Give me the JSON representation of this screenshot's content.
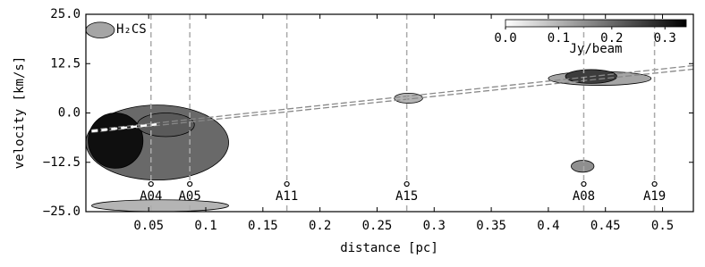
{
  "chart_data": {
    "type": "heatmap",
    "label": "H₂CS",
    "x_label": "distance [pc]",
    "y_label": "velocity [km/s]",
    "xlim": [
      -0.005,
      0.527
    ],
    "ylim": [
      -25,
      25
    ],
    "xticks": [
      0.05,
      0.1,
      0.15,
      0.2,
      0.25,
      0.3,
      0.35,
      0.4,
      0.45,
      0.5
    ],
    "yticks": [
      {
        "value": 25,
        "label": "25.0"
      },
      {
        "value": 12.5,
        "label": "12.5"
      },
      {
        "value": 0,
        "label": "0.0"
      },
      {
        "value": -12.5,
        "label": "−12.5"
      },
      {
        "value": -25,
        "label": "−25.0"
      }
    ],
    "colorbar": {
      "label": "Jy/beam",
      "lim": [
        0,
        0.34
      ],
      "ticks": [
        {
          "value": 0,
          "label": "0.0"
        },
        0.1,
        0.2,
        0.3
      ]
    },
    "emission": [
      {
        "x": [
          -0.005,
          0.12
        ],
        "v": [
          -17,
          2
        ],
        "peak": 0.2
      },
      {
        "x": [
          -0.003,
          0.045
        ],
        "v": [
          -14,
          0
        ],
        "peak": 0.32
      },
      {
        "x": [
          0.04,
          0.09
        ],
        "v": [
          -6,
          0
        ],
        "peak": 0.22
      },
      {
        "x": [
          0.265,
          0.29
        ],
        "v": [
          2.5,
          5
        ],
        "peak": 0.1
      },
      {
        "x": [
          0.4,
          0.49
        ],
        "v": [
          7,
          10.5
        ],
        "peak": 0.12
      },
      {
        "x": [
          0.415,
          0.46
        ],
        "v": [
          7.5,
          11
        ],
        "peak": 0.26
      },
      {
        "x": [
          0.42,
          0.44
        ],
        "v": [
          -15,
          -12
        ],
        "peak": 0.15
      },
      {
        "x": [
          0,
          0.12
        ],
        "v": [
          -25,
          -22
        ],
        "peak": 0.1
      },
      {
        "x": [
          -0.005,
          0.02
        ],
        "v": [
          19,
          23
        ],
        "peak": 0.12
      }
    ],
    "fit_lines": [
      {
        "x": [
          0,
          0.527
        ],
        "values": [
          -4.3,
          12.0
        ],
        "color": "#888888"
      },
      {
        "x": [
          0,
          0.527
        ],
        "values": [
          -4.9,
          11.1
        ],
        "color": "#888888"
      }
    ],
    "fit_segment": {
      "x": [
        0,
        0.06
      ],
      "values": [
        -4.6,
        -2.8
      ],
      "color": "#ffffff"
    },
    "markers": {
      "labels": [
        "A04",
        "A05",
        "A11",
        "A15",
        "A08",
        "A19"
      ],
      "x": [
        0.052,
        0.086,
        0.171,
        0.276,
        0.431,
        0.493
      ],
      "y": -18,
      "color": "#aaaaaa"
    }
  }
}
